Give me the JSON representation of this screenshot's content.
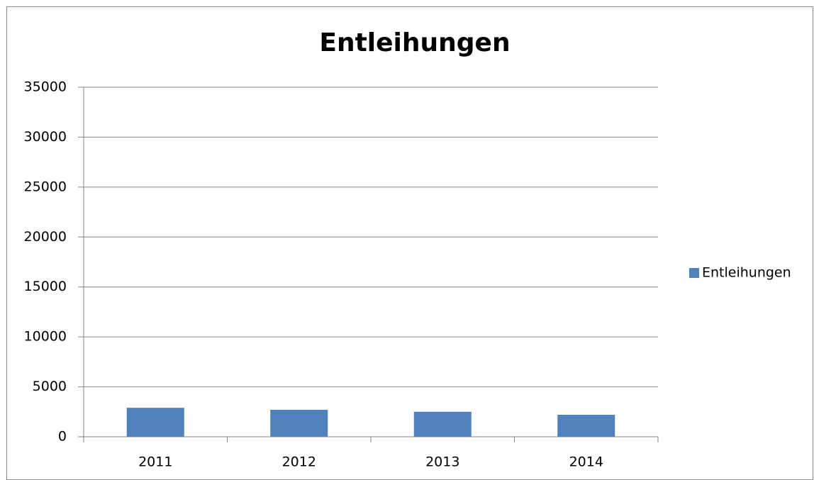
{
  "chart_data": {
    "type": "bar",
    "title": "Entleihungen",
    "categories": [
      "2011",
      "2012",
      "2013",
      "2014"
    ],
    "series": [
      {
        "name": "Entleihungen",
        "color": "#4f81bd",
        "values": [
          2900,
          2700,
          2500,
          2200
        ]
      }
    ],
    "ylim": [
      0,
      35000
    ],
    "yticks": [
      0,
      5000,
      10000,
      15000,
      20000,
      25000,
      30000,
      35000
    ],
    "grid": true,
    "legend": "right"
  }
}
